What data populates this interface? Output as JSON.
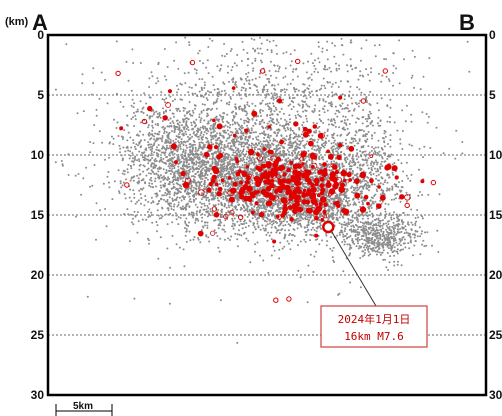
{
  "labels": {
    "left": "A",
    "right": "B",
    "unit": "(km)",
    "scale": "5km"
  },
  "colors": {
    "background_events": "#8c8c8c",
    "highlight_events": "#e00000",
    "frame": "#000000",
    "grid": "#333333",
    "callout_border": "#d04040"
  },
  "chart_data": {
    "type": "scatter",
    "title": "",
    "xlabel": "",
    "ylabel": "(km)",
    "y_axis": "depth",
    "ylim": [
      0,
      30
    ],
    "y_inverted": true,
    "yticks": [
      0,
      5,
      10,
      15,
      20,
      25,
      30
    ],
    "grid": "horizontal dotted",
    "series": [
      {
        "role": "background",
        "color": "#8c8c8c",
        "clusters": [
          {
            "cx": 0.44,
            "cy": 11.8,
            "sx": 0.12,
            "sy": 2.4,
            "n": 2700
          },
          {
            "cx": 0.58,
            "cy": 13.2,
            "sx": 0.08,
            "sy": 1.8,
            "n": 1500
          },
          {
            "cx": 0.3,
            "cy": 10.0,
            "sx": 0.07,
            "sy": 2.2,
            "n": 650
          },
          {
            "cx": 0.53,
            "cy": 5.5,
            "sx": 0.14,
            "sy": 2.8,
            "n": 700
          },
          {
            "cx": 0.72,
            "cy": 11.5,
            "sx": 0.05,
            "sy": 3.0,
            "n": 500
          },
          {
            "cx": 0.76,
            "cy": 16.7,
            "sx": 0.045,
            "sy": 0.9,
            "n": 480
          },
          {
            "cx": 0.45,
            "cy": 8.0,
            "sx": 0.22,
            "sy": 5.5,
            "n": 500
          }
        ]
      },
      {
        "role": "highlight",
        "color": "#e00000",
        "clusters": [
          {
            "cx": 0.57,
            "cy": 12.5,
            "sx": 0.09,
            "sy": 1.6,
            "n": 260
          },
          {
            "cx": 0.48,
            "cy": 11.0,
            "sx": 0.13,
            "sy": 3.2,
            "n": 60
          }
        ],
        "points": [
          {
            "x": 0.16,
            "y": 3.2
          },
          {
            "x": 0.33,
            "y": 2.3
          },
          {
            "x": 0.49,
            "y": 3.0
          },
          {
            "x": 0.57,
            "y": 2.2
          },
          {
            "x": 0.77,
            "y": 3.0
          },
          {
            "x": 0.72,
            "y": 5.5
          },
          {
            "x": 0.22,
            "y": 7.2
          },
          {
            "x": 0.18,
            "y": 12.5
          },
          {
            "x": 0.38,
            "y": 14.5
          },
          {
            "x": 0.44,
            "y": 15.2
          },
          {
            "x": 0.88,
            "y": 12.3
          },
          {
            "x": 0.82,
            "y": 14.2
          },
          {
            "x": 0.52,
            "y": 22.1
          },
          {
            "x": 0.55,
            "y": 22.0
          }
        ]
      }
    ],
    "annotations": [
      {
        "date": "2024年1月1日",
        "detail": "16km  M7.6",
        "marker": {
          "x": 0.64,
          "y": 16
        }
      }
    ]
  }
}
